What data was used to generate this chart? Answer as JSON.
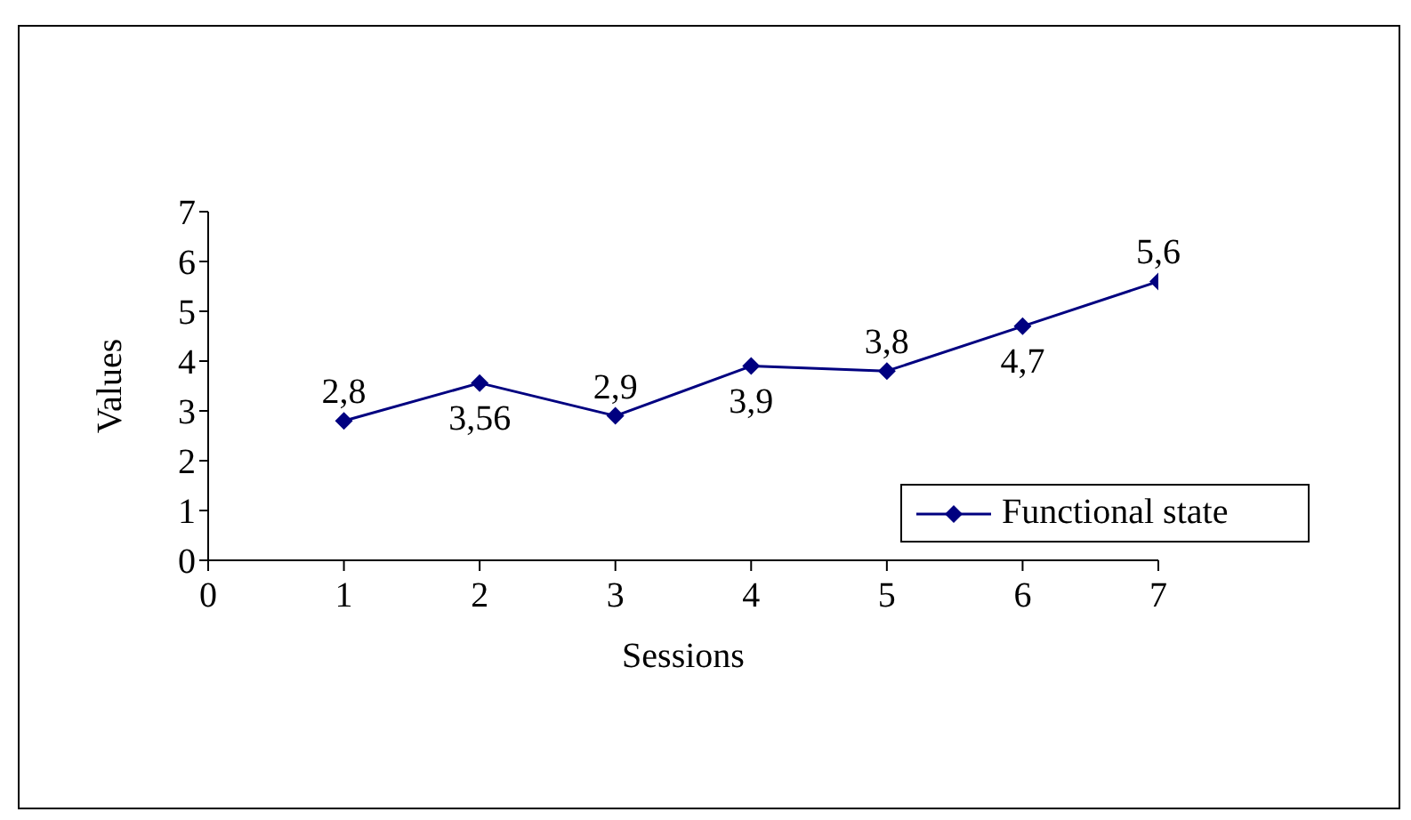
{
  "chart_data": {
    "type": "line",
    "xlabel": "Sessions",
    "ylabel": "Values",
    "x": [
      1,
      2,
      3,
      4,
      5,
      6,
      7
    ],
    "series": [
      {
        "name": "Functional state",
        "color": "#000080",
        "values": [
          2.8,
          3.56,
          2.9,
          3.9,
          3.8,
          4.7,
          5.6
        ],
        "value_labels": [
          "2,8",
          "3,56",
          "2,9",
          "3,9",
          "3,8",
          "4,7",
          "5,6"
        ]
      }
    ],
    "xlim": [
      0,
      7
    ],
    "xticks": [
      0,
      1,
      2,
      3,
      4,
      5,
      6,
      7
    ],
    "ylim": [
      0,
      7
    ],
    "yticks": [
      0,
      1,
      2,
      3,
      4,
      5,
      6,
      7
    ],
    "grid": false,
    "legend": "right",
    "marker": "diamond",
    "line_style": "solid"
  }
}
